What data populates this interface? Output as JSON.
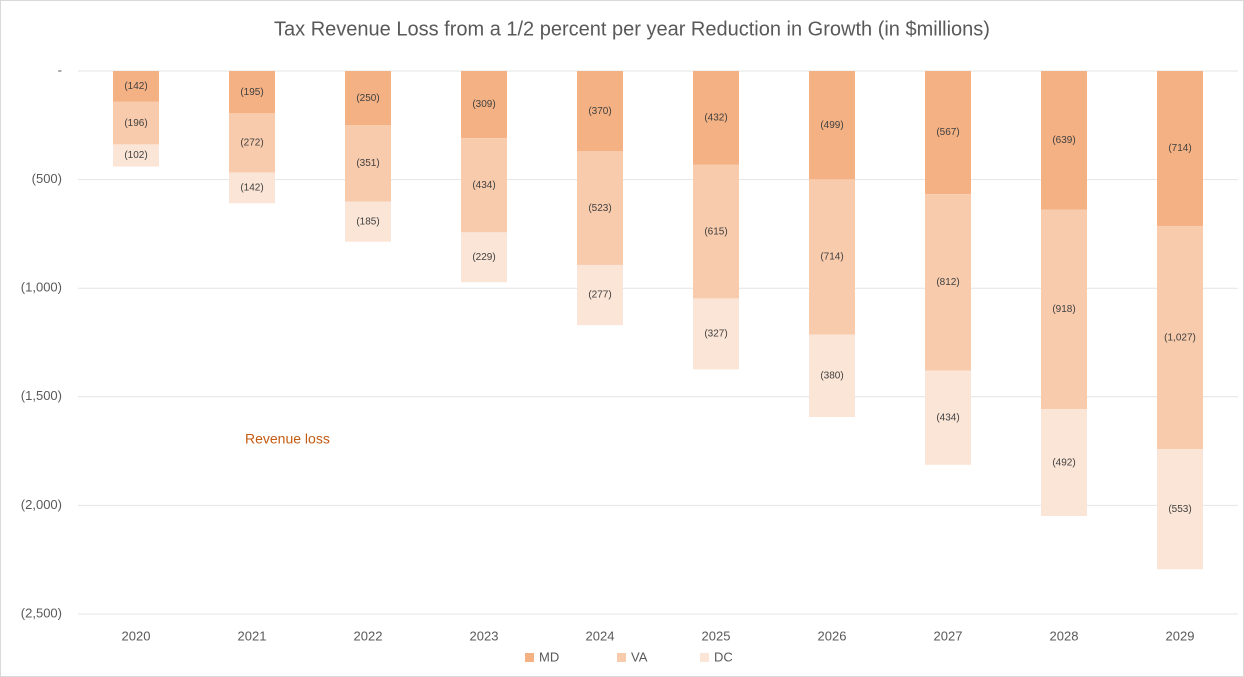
{
  "chart_data": {
    "type": "bar",
    "stacked": true,
    "title": "Tax Revenue Loss from a 1/2 percent per year Reduction in Growth (in $millions)",
    "annotation": "Revenue loss",
    "categories": [
      "2020",
      "2021",
      "2022",
      "2023",
      "2024",
      "2025",
      "2026",
      "2027",
      "2028",
      "2029"
    ],
    "series": [
      {
        "name": "MD",
        "color": "#f4b183",
        "values": [
          -142,
          -195,
          -250,
          -309,
          -370,
          -432,
          -499,
          -567,
          -639,
          -714
        ],
        "value_labels": [
          "(142)",
          "(195)",
          "(250)",
          "(309)",
          "(370)",
          "(432)",
          "(499)",
          "(567)",
          "(639)",
          "(714)"
        ]
      },
      {
        "name": "VA",
        "color": "#f8cbad",
        "values": [
          -196,
          -272,
          -351,
          -434,
          -523,
          -615,
          -714,
          -812,
          -918,
          -1027
        ],
        "value_labels": [
          "(196)",
          "(272)",
          "(351)",
          "(434)",
          "(523)",
          "(615)",
          "(714)",
          "(812)",
          "(918)",
          "(1,027)"
        ]
      },
      {
        "name": "DC",
        "color": "#fbe5d6",
        "values": [
          -102,
          -142,
          -185,
          -229,
          -277,
          -327,
          -380,
          -434,
          -492,
          -553
        ],
        "value_labels": [
          "(102)",
          "(142)",
          "(185)",
          "(229)",
          "(277)",
          "(327)",
          "(380)",
          "(434)",
          "(492)",
          "(553)"
        ]
      }
    ],
    "ylim": [
      -2500,
      0
    ],
    "yticks": [
      {
        "value": 0,
        "label": "-"
      },
      {
        "value": -500,
        "label": "(500)"
      },
      {
        "value": -1000,
        "label": "(1,000)"
      },
      {
        "value": -1500,
        "label": "(1,500)"
      },
      {
        "value": -2000,
        "label": "(2,000)"
      },
      {
        "value": -2500,
        "label": "(2,500)"
      }
    ],
    "grid": true,
    "legend": "bottom"
  }
}
